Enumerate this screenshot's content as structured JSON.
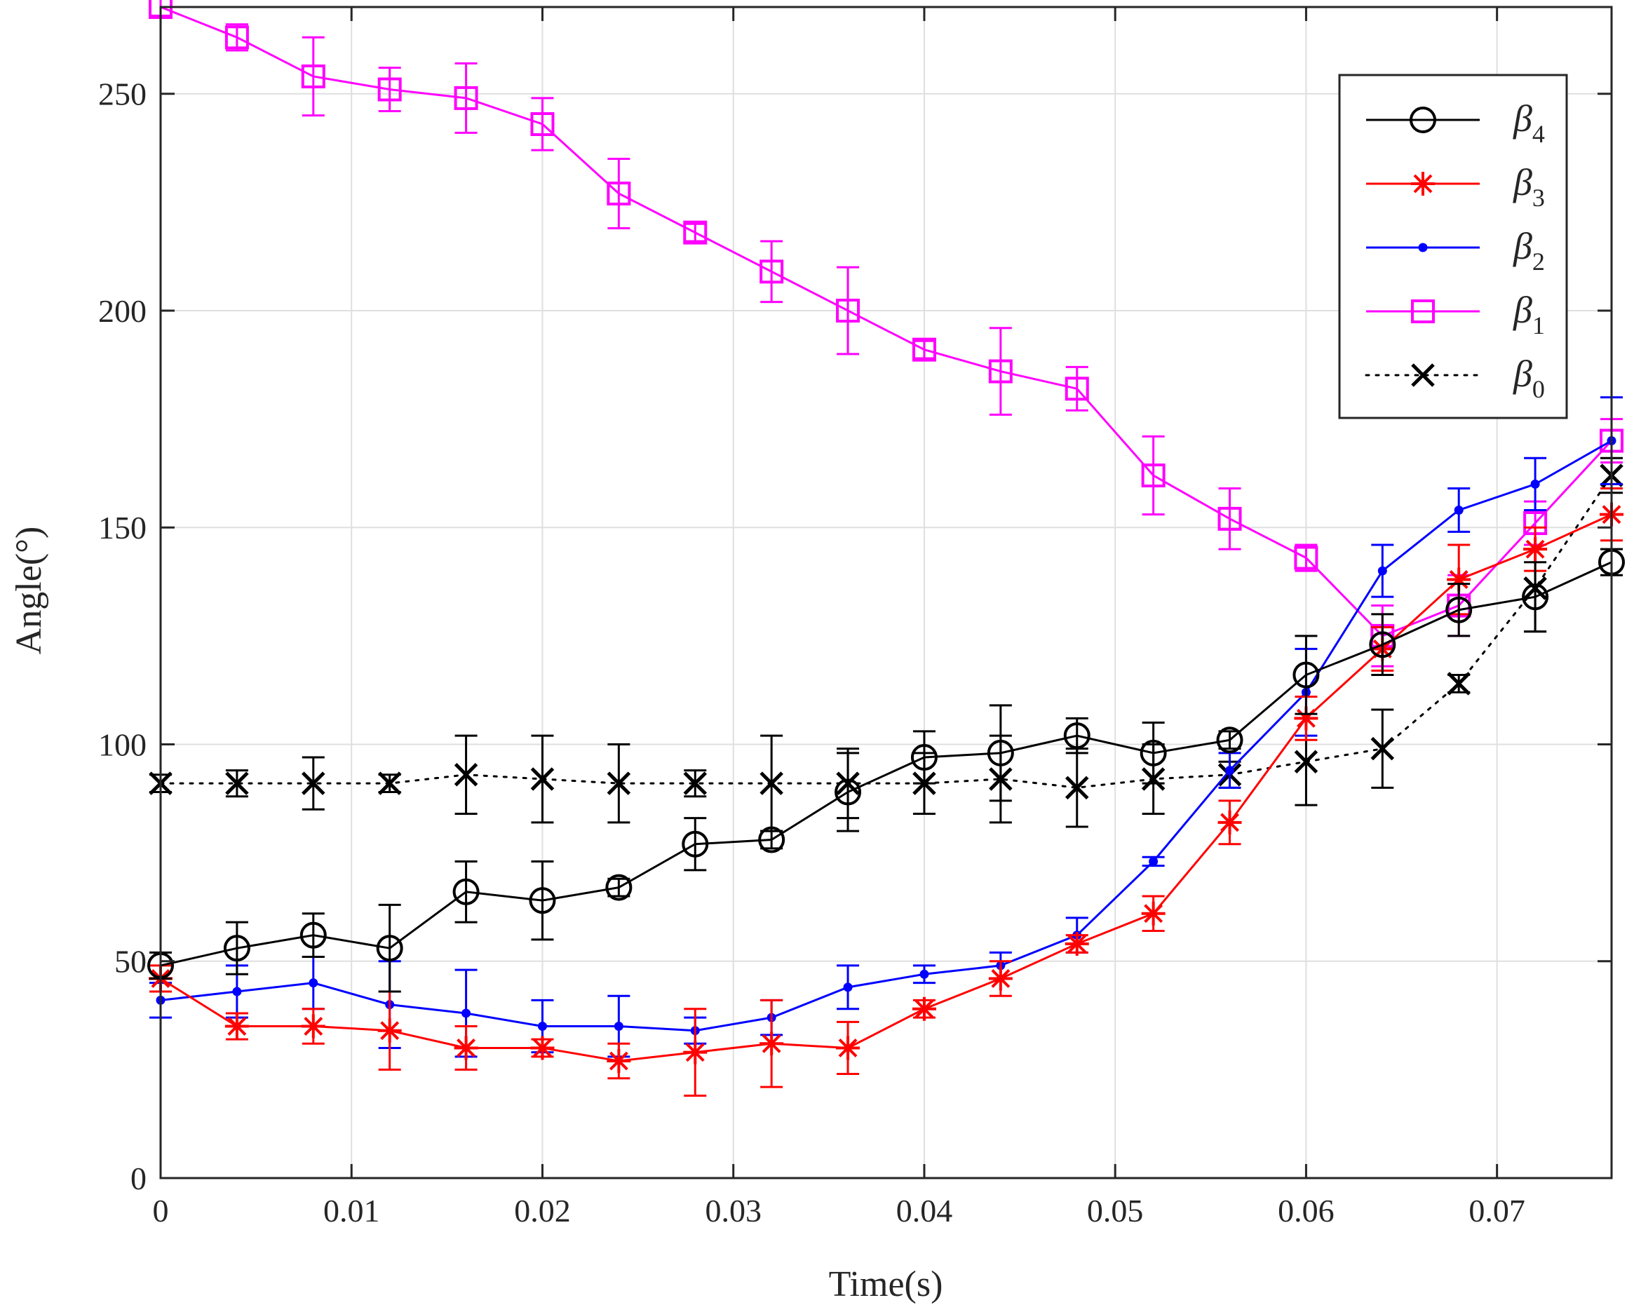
{
  "chart_data": {
    "type": "line",
    "title": "",
    "xlabel": "Time(s)",
    "ylabel": "Angle(°)",
    "xlim": [
      0,
      0.076
    ],
    "ylim": [
      0,
      270
    ],
    "grid": true,
    "legend_position": "top-right",
    "x": [
      0,
      0.004,
      0.008,
      0.012,
      0.016,
      0.02,
      0.024,
      0.028,
      0.032,
      0.036,
      0.04,
      0.044,
      0.048,
      0.052,
      0.056,
      0.06,
      0.064,
      0.068,
      0.072,
      0.076
    ],
    "x_ticks": [
      0,
      0.01,
      0.02,
      0.03,
      0.04,
      0.05,
      0.06,
      0.07
    ],
    "x_tick_labels": [
      "0",
      "0.01",
      "0.02",
      "0.03",
      "0.04",
      "0.05",
      "0.06",
      "0.07"
    ],
    "y_ticks": [
      0,
      50,
      100,
      150,
      200,
      250
    ],
    "y_tick_labels": [
      "0",
      "50",
      "100",
      "150",
      "200",
      "250"
    ],
    "series": [
      {
        "name": "β4",
        "symbol": "β",
        "subscript": "4",
        "color": "#000000",
        "marker": "circle",
        "line_style": "solid",
        "values": [
          49,
          53,
          56,
          53,
          66,
          64,
          67,
          77,
          78,
          89,
          97,
          98,
          102,
          98,
          101,
          116,
          123,
          131,
          134,
          142
        ],
        "errors": [
          3,
          6,
          5,
          10,
          7,
          9,
          2,
          6,
          2,
          9,
          6,
          11,
          4,
          7,
          2,
          9,
          7,
          6,
          8,
          3
        ]
      },
      {
        "name": "β3",
        "symbol": "β",
        "subscript": "3",
        "color": "#ff0000",
        "marker": "asterisk",
        "line_style": "solid",
        "values": [
          46,
          35,
          35,
          34,
          30,
          30,
          27,
          29,
          31,
          30,
          39,
          46,
          54,
          61,
          82,
          106,
          122,
          138,
          145,
          153
        ],
        "errors": [
          3,
          3,
          4,
          9,
          5,
          2,
          4,
          10,
          10,
          6,
          2,
          4,
          2,
          4,
          5,
          5,
          5,
          8,
          5,
          6
        ]
      },
      {
        "name": "β2",
        "symbol": "β",
        "subscript": "2",
        "color": "#0000ff",
        "marker": "dot",
        "line_style": "solid",
        "values": [
          41,
          43,
          45,
          40,
          38,
          35,
          35,
          34,
          37,
          44,
          47,
          49,
          56,
          73,
          94,
          112,
          140,
          154,
          160,
          170
        ],
        "errors": [
          4,
          6,
          6,
          10,
          10,
          6,
          7,
          3,
          4,
          5,
          2,
          3,
          4,
          1,
          4,
          10,
          6,
          5,
          6,
          10
        ]
      },
      {
        "name": "β1",
        "symbol": "β",
        "subscript": "1",
        "color": "#ff00ff",
        "marker": "square",
        "line_style": "solid",
        "values": [
          270,
          263,
          254,
          251,
          249,
          243,
          227,
          218,
          209,
          200,
          191,
          186,
          182,
          162,
          152,
          143,
          125,
          132,
          151,
          170
        ],
        "errors": [
          2,
          3,
          9,
          5,
          8,
          6,
          8,
          2,
          7,
          10,
          2,
          10,
          5,
          9,
          7,
          3,
          7,
          7,
          5,
          5
        ]
      },
      {
        "name": "β0",
        "symbol": "β",
        "subscript": "0",
        "color": "#000000",
        "marker": "x",
        "line_style": "dotted",
        "values": [
          91,
          91,
          91,
          91,
          93,
          92,
          91,
          91,
          91,
          91,
          91,
          92,
          90,
          92,
          93,
          96,
          99,
          114,
          136,
          162
        ],
        "errors": [
          2,
          3,
          6,
          2,
          9,
          10,
          9,
          3,
          11,
          8,
          7,
          10,
          9,
          8,
          3,
          10,
          9,
          2,
          10,
          4
        ]
      }
    ]
  }
}
